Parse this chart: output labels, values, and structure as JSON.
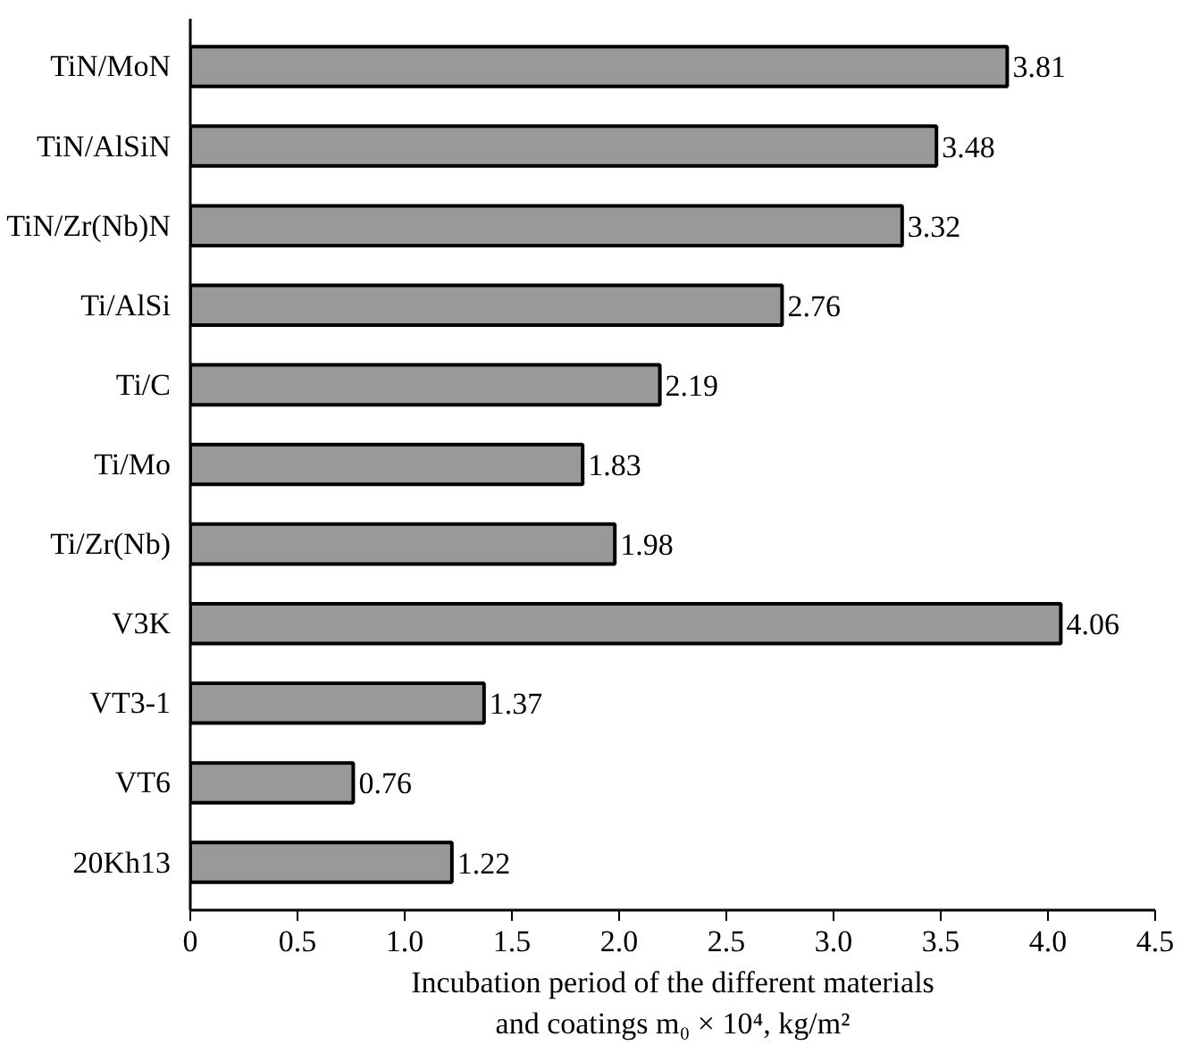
{
  "chart_data": {
    "type": "bar",
    "orientation": "horizontal",
    "categories": [
      "TiN/MoN",
      "TiN/AlSiN",
      "TiN/Zr(Nb)N",
      "Ti/AlSi",
      "Ti/C",
      "Ti/Mo",
      "Ti/Zr(Nb)",
      "V3K",
      "VT3-1",
      "VT6",
      "20Kh13"
    ],
    "values": [
      3.81,
      3.48,
      3.32,
      2.76,
      2.19,
      1.83,
      1.98,
      4.06,
      1.37,
      0.76,
      1.22
    ],
    "color": "#999999",
    "data_labels": true,
    "grid": false,
    "xlim": [
      0,
      4.5
    ],
    "xticks": [
      0,
      0.5,
      {
        "value": 1,
        "label": "1.0"
      },
      1.5,
      {
        "value": 2,
        "label": "2.0"
      },
      2.5,
      {
        "value": 3,
        "label": "3.0"
      },
      3.5,
      {
        "value": 4,
        "label": "4.0"
      },
      4.5
    ],
    "xlabel": "Incubation period of the different materials and coatings m₀ × 10⁴, kg/m²"
  }
}
